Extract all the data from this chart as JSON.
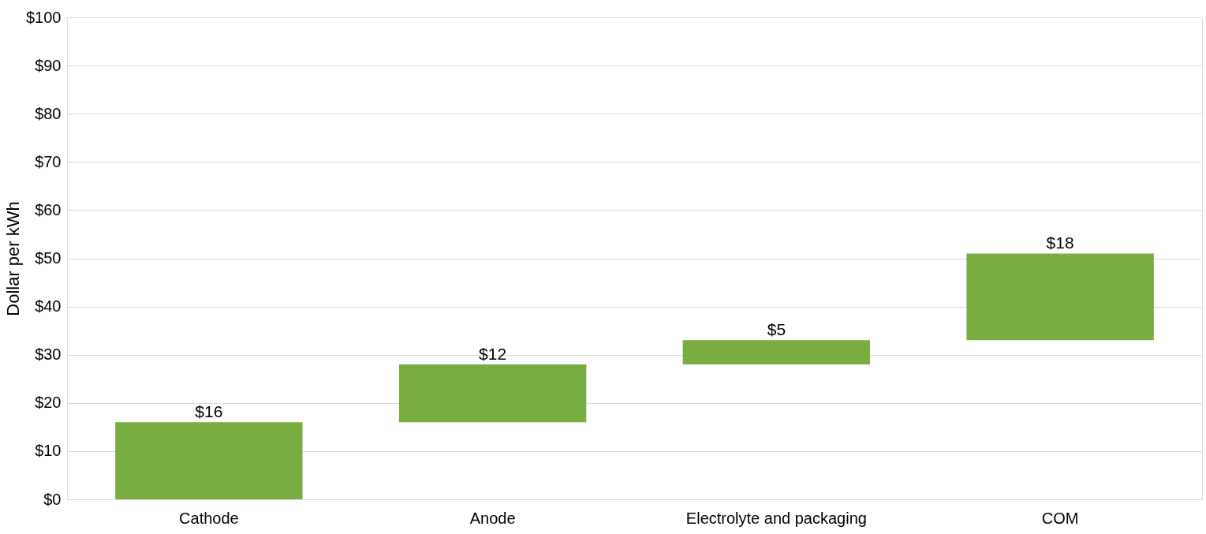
{
  "chart_data": {
    "type": "bar",
    "ylabel": "Dollar per kWh",
    "categories": [
      "Cathode",
      "Anode",
      "Electrolyte and packaging",
      "COM"
    ],
    "values": [
      16,
      12,
      5,
      18
    ],
    "base": [
      0,
      16,
      28,
      33
    ],
    "value_labels": [
      "$16",
      "$12",
      "$5",
      "$18"
    ],
    "color": "#7aad41",
    "ylim": [
      0,
      100
    ],
    "yticks": [
      {
        "value": 0,
        "label": "$0"
      },
      {
        "value": 10,
        "label": "$10"
      },
      {
        "value": 20,
        "label": "$20"
      },
      {
        "value": 30,
        "label": "$30"
      },
      {
        "value": 40,
        "label": "$40"
      },
      {
        "value": 50,
        "label": "$50"
      },
      {
        "value": 60,
        "label": "$60"
      },
      {
        "value": 70,
        "label": "$70"
      },
      {
        "value": 80,
        "label": "$80"
      },
      {
        "value": 90,
        "label": "$90"
      },
      {
        "value": 100,
        "label": "$100"
      }
    ],
    "grid": "y"
  }
}
